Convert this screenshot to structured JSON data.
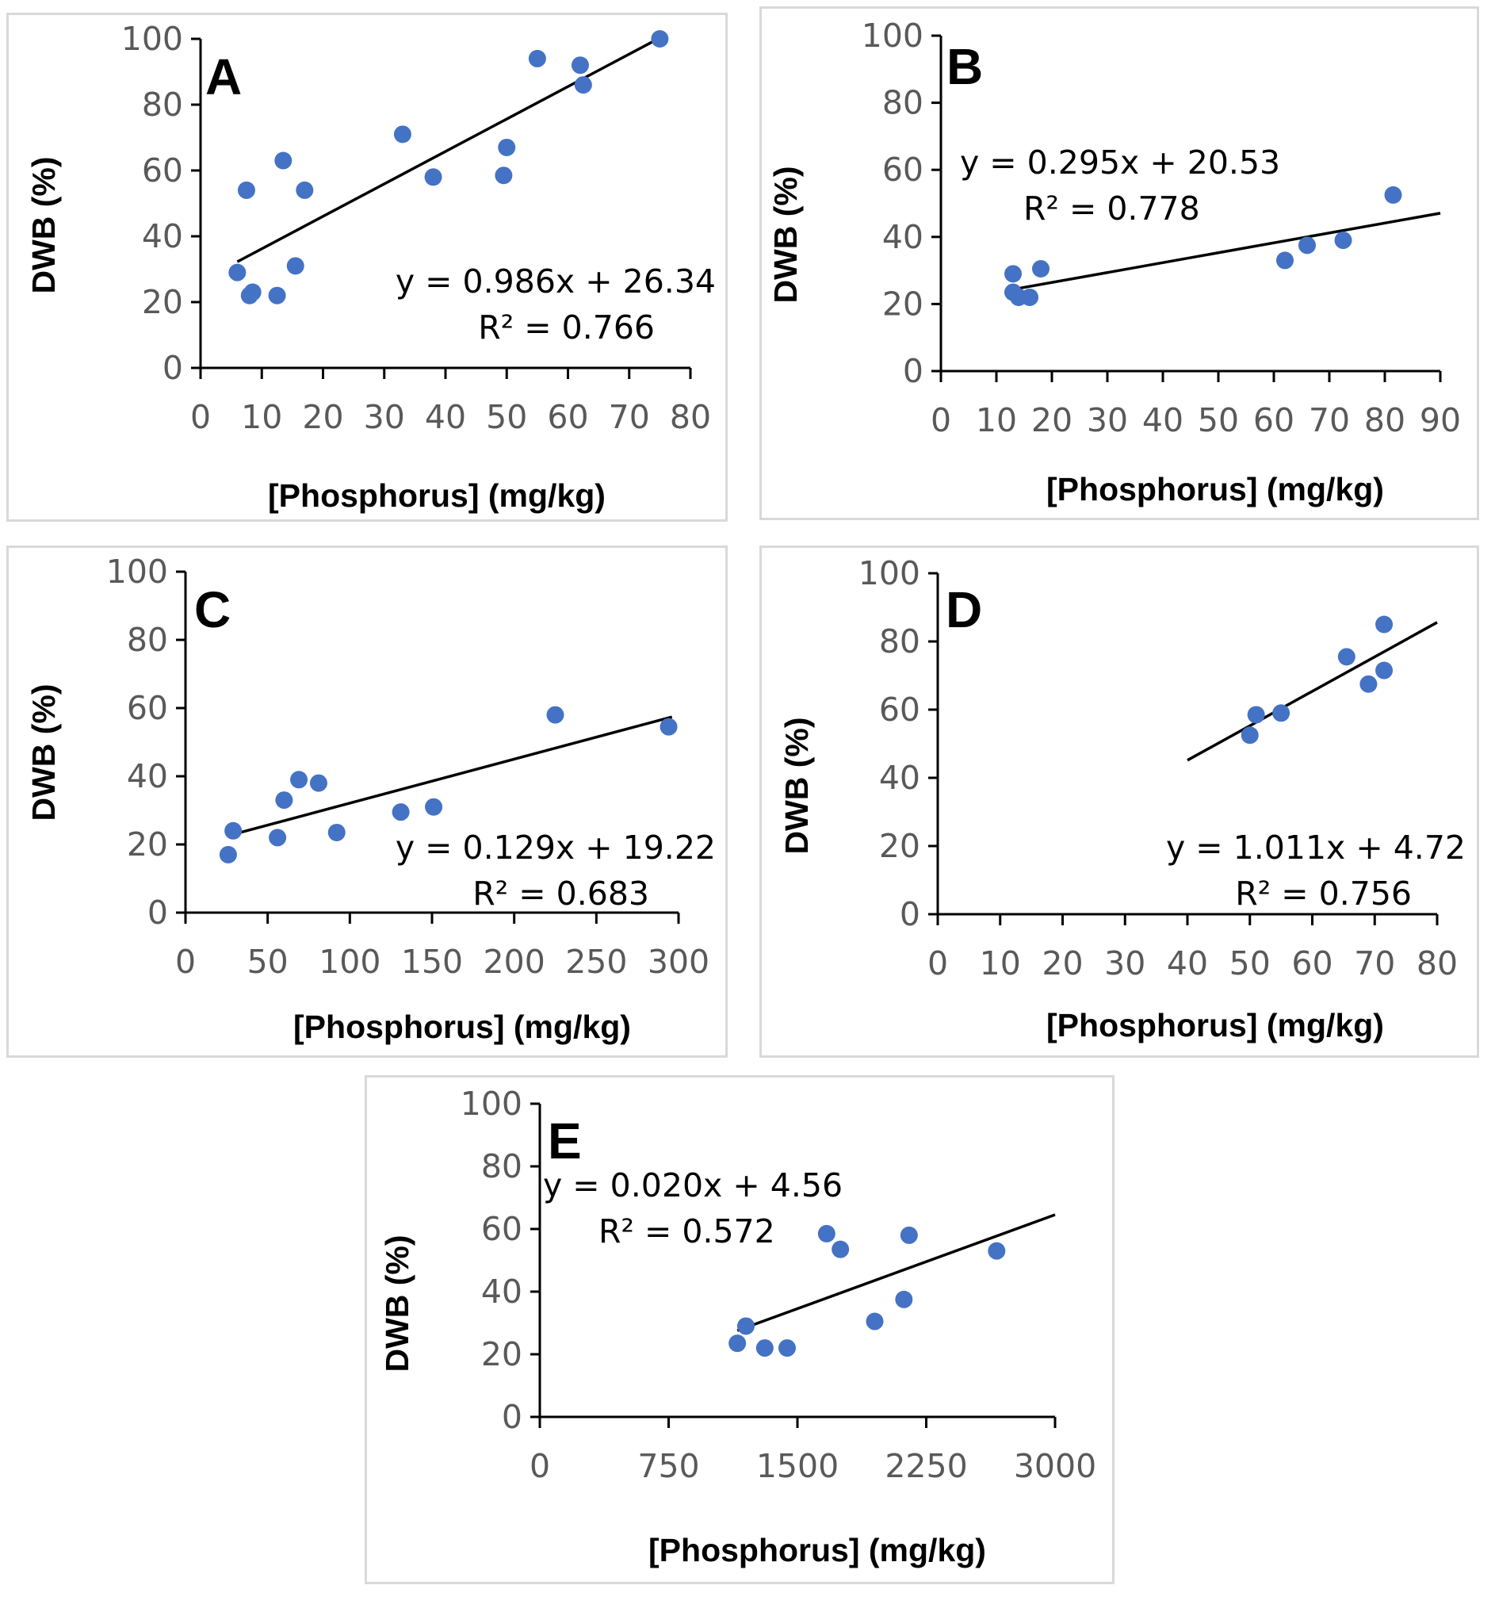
{
  "chart_data": [
    {
      "id": "A",
      "type": "scatter",
      "panel_label": "A",
      "xlabel": "[Phosphorus]  (mg/kg)",
      "ylabel": "DWB (%)",
      "xlim": [
        0,
        80
      ],
      "ylim": [
        0,
        100
      ],
      "x_ticks": [
        "0",
        "10",
        "20",
        "30",
        "40",
        "50",
        "60",
        "70",
        "80"
      ],
      "y_ticks": [
        "0",
        "20",
        "40",
        "60",
        "80",
        "100"
      ],
      "points": [
        {
          "x": 6,
          "y": 29
        },
        {
          "x": 7.5,
          "y": 54
        },
        {
          "x": 8,
          "y": 22
        },
        {
          "x": 8.5,
          "y": 23
        },
        {
          "x": 12.5,
          "y": 22
        },
        {
          "x": 13.5,
          "y": 63
        },
        {
          "x": 15.5,
          "y": 31
        },
        {
          "x": 17,
          "y": 54
        },
        {
          "x": 33,
          "y": 71
        },
        {
          "x": 38,
          "y": 58
        },
        {
          "x": 49.5,
          "y": 58.5
        },
        {
          "x": 50,
          "y": 67
        },
        {
          "x": 55,
          "y": 94
        },
        {
          "x": 62,
          "y": 92
        },
        {
          "x": 62.5,
          "y": 86
        },
        {
          "x": 75,
          "y": 100
        }
      ],
      "trendline": {
        "slope": 0.986,
        "intercept": 26.34,
        "x_range": [
          6,
          75
        ]
      },
      "equation": "y = 0.986x + 26.34",
      "r_squared": "R² = 0.766",
      "marker_color": "#4472c4",
      "line_color": "#000000"
    },
    {
      "id": "B",
      "type": "scatter",
      "panel_label": "B",
      "xlabel": "[Phosphorus]  (mg/kg)",
      "ylabel": "DWB (%)",
      "xlim": [
        0,
        90
      ],
      "ylim": [
        0,
        100
      ],
      "x_ticks": [
        "0",
        "10",
        "20",
        "30",
        "40",
        "50",
        "60",
        "70",
        "80",
        "90"
      ],
      "y_ticks": [
        "0",
        "20",
        "40",
        "60",
        "80",
        "100"
      ],
      "points": [
        {
          "x": 13,
          "y": 29
        },
        {
          "x": 13,
          "y": 23.5
        },
        {
          "x": 14,
          "y": 22
        },
        {
          "x": 16,
          "y": 22
        },
        {
          "x": 18,
          "y": 30.5
        },
        {
          "x": 62,
          "y": 33
        },
        {
          "x": 66,
          "y": 37.5
        },
        {
          "x": 72.5,
          "y": 39
        },
        {
          "x": 81.5,
          "y": 52.5
        }
      ],
      "trendline": {
        "slope": 0.295,
        "intercept": 20.53,
        "x_range": [
          13,
          90
        ]
      },
      "equation": "y = 0.295x + 20.53",
      "r_squared": "R² = 0.778",
      "marker_color": "#4472c4",
      "line_color": "#000000"
    },
    {
      "id": "C",
      "type": "scatter",
      "panel_label": "C",
      "xlabel": "[Phosphorus]  (mg/kg)",
      "ylabel": "DWB (%)",
      "xlim": [
        0,
        300
      ],
      "ylim": [
        0,
        100
      ],
      "x_ticks": [
        "0",
        "50",
        "100",
        "150",
        "200",
        "250",
        "300"
      ],
      "y_ticks": [
        "0",
        "20",
        "40",
        "60",
        "80",
        "100"
      ],
      "points": [
        {
          "x": 26,
          "y": 17
        },
        {
          "x": 29,
          "y": 24
        },
        {
          "x": 56,
          "y": 22
        },
        {
          "x": 60,
          "y": 33
        },
        {
          "x": 69,
          "y": 39
        },
        {
          "x": 81,
          "y": 38
        },
        {
          "x": 92,
          "y": 23.5
        },
        {
          "x": 131,
          "y": 29.5
        },
        {
          "x": 151,
          "y": 31
        },
        {
          "x": 225,
          "y": 58
        },
        {
          "x": 294,
          "y": 54.5
        }
      ],
      "trendline": {
        "slope": 0.129,
        "intercept": 19.22,
        "x_range": [
          26,
          296
        ]
      },
      "equation": "y = 0.129x + 19.22",
      "r_squared": "R² = 0.683",
      "marker_color": "#4472c4",
      "line_color": "#000000"
    },
    {
      "id": "D",
      "type": "scatter",
      "panel_label": "D",
      "xlabel": "[Phosphorus]  (mg/kg)",
      "ylabel": "DWB (%)",
      "xlim": [
        0,
        80
      ],
      "ylim": [
        0,
        100
      ],
      "x_ticks": [
        "0",
        "10",
        "20",
        "30",
        "40",
        "50",
        "60",
        "70",
        "80"
      ],
      "y_ticks": [
        "0",
        "20",
        "40",
        "60",
        "80",
        "100"
      ],
      "points": [
        {
          "x": 50,
          "y": 52.5
        },
        {
          "x": 51,
          "y": 58.5
        },
        {
          "x": 55,
          "y": 59
        },
        {
          "x": 65.5,
          "y": 75.5
        },
        {
          "x": 69,
          "y": 67.5
        },
        {
          "x": 71.5,
          "y": 71.5
        },
        {
          "x": 71.5,
          "y": 85
        }
      ],
      "trendline": {
        "slope": 1.011,
        "intercept": 4.72,
        "x_range": [
          40,
          80
        ]
      },
      "equation": "y = 1.011x + 4.72",
      "r_squared": "R² = 0.756",
      "marker_color": "#4472c4",
      "line_color": "#000000"
    },
    {
      "id": "E",
      "type": "scatter",
      "panel_label": "E",
      "xlabel": "[Phosphorus]  (mg/kg)",
      "ylabel": "DWB (%)",
      "xlim": [
        0,
        3000
      ],
      "ylim": [
        0,
        100
      ],
      "x_ticks": [
        "0",
        "750",
        "1500",
        "2250",
        "3000"
      ],
      "y_ticks": [
        "0",
        "20",
        "40",
        "60",
        "80",
        "100"
      ],
      "points": [
        {
          "x": 1150,
          "y": 23.5
        },
        {
          "x": 1200,
          "y": 29
        },
        {
          "x": 1310,
          "y": 22
        },
        {
          "x": 1440,
          "y": 22
        },
        {
          "x": 1670,
          "y": 58.5
        },
        {
          "x": 1750,
          "y": 53.5
        },
        {
          "x": 1950,
          "y": 30.5
        },
        {
          "x": 2120,
          "y": 37.5
        },
        {
          "x": 2150,
          "y": 58
        },
        {
          "x": 2660,
          "y": 53
        }
      ],
      "trendline": {
        "slope": 0.02,
        "intercept": 4.56,
        "x_range": [
          1150,
          3000
        ]
      },
      "equation": "y = 0.020x + 4.56",
      "r_squared": "R² = 0.572",
      "marker_color": "#4472c4",
      "line_color": "#000000"
    }
  ]
}
